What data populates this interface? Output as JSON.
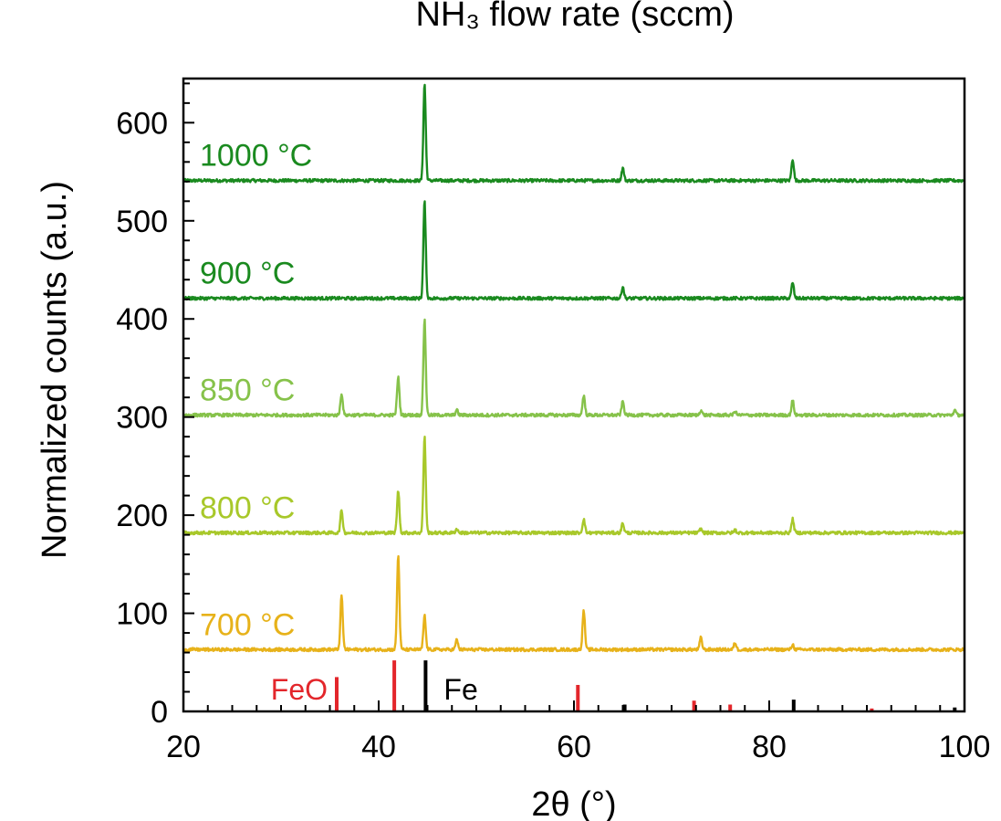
{
  "chart_data": {
    "type": "line",
    "title": "NH₃ flow rate (sccm)",
    "xlabel": "2θ (°)",
    "ylabel": "Normalized counts (a.u.)",
    "xlim": [
      20,
      100
    ],
    "ylim": [
      0,
      645
    ],
    "xticks": [
      20,
      40,
      60,
      80,
      100
    ],
    "yticks": [
      0,
      100,
      200,
      300,
      400,
      500,
      600
    ],
    "grid": false,
    "legend": "none",
    "series": [
      {
        "name": "1000 °C",
        "color": "#1a8a1f",
        "baseline": 541,
        "peaks": [
          [
            44.7,
            99
          ],
          [
            65.0,
            13
          ],
          [
            82.4,
            22
          ]
        ]
      },
      {
        "name": "900 °C",
        "color": "#1a8a1f",
        "baseline": 421,
        "peaks": [
          [
            44.7,
            99
          ],
          [
            65.0,
            12
          ],
          [
            82.4,
            16
          ]
        ]
      },
      {
        "name": "850 °C",
        "color": "#86c24a",
        "baseline": 302,
        "peaks": [
          [
            36.2,
            22
          ],
          [
            42.0,
            39
          ],
          [
            44.7,
            98
          ],
          [
            48.0,
            5
          ],
          [
            61.0,
            20
          ],
          [
            65.0,
            14
          ],
          [
            73.0,
            5
          ],
          [
            76.5,
            4
          ],
          [
            82.4,
            15
          ],
          [
            99.0,
            5
          ]
        ]
      },
      {
        "name": "800 °C",
        "color": "#a8c82a",
        "baseline": 182,
        "peaks": [
          [
            36.2,
            23
          ],
          [
            42.0,
            43
          ],
          [
            44.7,
            98
          ],
          [
            48.0,
            4
          ],
          [
            61.0,
            14
          ],
          [
            65.0,
            10
          ],
          [
            73.0,
            4
          ],
          [
            76.5,
            3
          ],
          [
            82.4,
            14
          ]
        ]
      },
      {
        "name": "700 °C",
        "color": "#e7b21a",
        "baseline": 63,
        "peaks": [
          [
            36.2,
            55
          ],
          [
            42.0,
            96
          ],
          [
            44.7,
            35
          ],
          [
            48.0,
            10
          ],
          [
            61.0,
            40
          ],
          [
            73.0,
            12
          ],
          [
            76.5,
            7
          ],
          [
            82.4,
            5
          ]
        ]
      }
    ],
    "reference_patterns": [
      {
        "name": "FeO",
        "color": "#e3262b",
        "sticks": [
          [
            35.7,
            35
          ],
          [
            41.6,
            52
          ],
          [
            60.4,
            27
          ],
          [
            72.3,
            11
          ],
          [
            76.0,
            7
          ],
          [
            90.5,
            3
          ]
        ]
      },
      {
        "name": "Fe",
        "color": "#000000",
        "sticks": [
          [
            44.8,
            52
          ],
          [
            65.2,
            7
          ],
          [
            82.5,
            12
          ],
          [
            99.0,
            4
          ]
        ]
      }
    ]
  }
}
